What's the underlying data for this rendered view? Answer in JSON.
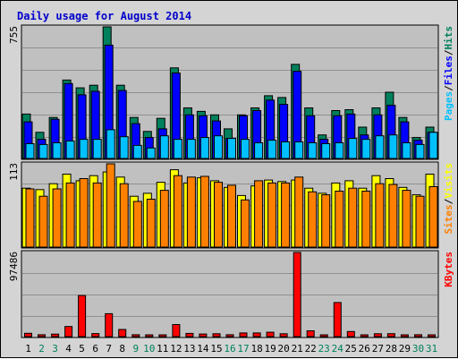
{
  "chart_data": {
    "type": "bar",
    "title": "Daily usage for August 2014",
    "colors": {
      "hits": "#00805c",
      "files": "#0000ff",
      "pages": "#00c0ff",
      "visits": "#ffff00",
      "sites": "#ff8000",
      "kbytes": "#ff0000",
      "weekday": "#000000",
      "weekend": "#00805c",
      "separator": "#000000"
    },
    "x": [
      "1",
      "2",
      "3",
      "4",
      "5",
      "6",
      "7",
      "8",
      "9",
      "10",
      "11",
      "12",
      "13",
      "14",
      "15",
      "16",
      "17",
      "18",
      "19",
      "20",
      "21",
      "22",
      "23",
      "24",
      "25",
      "26",
      "27",
      "28",
      "29",
      "30",
      "31"
    ],
    "weekend": [
      false,
      true,
      true,
      false,
      false,
      false,
      false,
      false,
      true,
      true,
      false,
      false,
      false,
      false,
      false,
      true,
      true,
      false,
      false,
      false,
      false,
      false,
      true,
      true,
      false,
      false,
      false,
      false,
      false,
      true,
      true
    ],
    "panels": [
      {
        "name": "hits-files-pages",
        "ymax_label": "755",
        "ymax": 755,
        "legend": [
          "Pages",
          "/",
          "Files",
          "/",
          "Hits"
        ],
        "legend_colors": [
          "#00c0ff",
          "#000000",
          "#0000ff",
          "#000000",
          "#00805c"
        ],
        "series": [
          {
            "name": "Hits",
            "values": [
              255,
              150,
              235,
              450,
              405,
              420,
              755,
              420,
              235,
              155,
              230,
              520,
              290,
              270,
              250,
              170,
              250,
              290,
              360,
              350,
              540,
              290,
              135,
              275,
              280,
              180,
              290,
              380,
              235,
              120,
              180
            ]
          },
          {
            "name": "Files",
            "values": [
              210,
              110,
              225,
              430,
              365,
              385,
              650,
              390,
              200,
              120,
              170,
              490,
              250,
              245,
              215,
              115,
              245,
              275,
              335,
              310,
              500,
              245,
              110,
              245,
              255,
              135,
              250,
              305,
              210,
              105,
              150
            ]
          },
          {
            "name": "Pages",
            "values": [
              85,
              80,
              90,
              100,
              110,
              110,
              165,
              125,
              75,
              60,
              130,
              110,
              110,
              120,
              130,
              115,
              110,
              90,
              105,
              95,
              95,
              90,
              85,
              90,
              115,
              110,
              130,
              135,
              90,
              80,
              150
            ]
          }
        ]
      },
      {
        "name": "visits-sites",
        "ymax_label": "113",
        "ymax": 113,
        "legend": [
          "Sites",
          "/",
          "Visits"
        ],
        "legend_colors": [
          "#ff8000",
          "#000000",
          "#ffff00"
        ],
        "series": [
          {
            "name": "Visits",
            "values": [
              80,
              78,
              86,
              99,
              90,
              97,
              102,
              95,
              69,
              73,
              88,
              105,
              87,
              94,
              90,
              81,
              70,
              83,
              91,
              89,
              91,
              80,
              73,
              87,
              90,
              80,
              97,
              93,
              81,
              71,
              99
            ]
          },
          {
            "name": "Sites",
            "values": [
              79,
              69,
              79,
              87,
              93,
              87,
              113,
              86,
              62,
              65,
              77,
              97,
              95,
              96,
              88,
              84,
              64,
              90,
              87,
              87,
              95,
              75,
              71,
              76,
              80,
              76,
              86,
              85,
              77,
              69,
              82
            ]
          }
        ]
      },
      {
        "name": "kbytes",
        "ymax_label": "97486",
        "ymax": 97486,
        "legend": [
          "KBytes"
        ],
        "legend_colors": [
          "#ff0000"
        ],
        "series": [
          {
            "name": "KBytes",
            "values": [
              3800,
              2200,
              2900,
              11700,
              47600,
              3500,
              26500,
              8300,
              2200,
              1100,
              2000,
              14000,
              3700,
              3000,
              3300,
              2200,
              4300,
              4300,
              5100,
              3300,
              97486,
              6700,
              1500,
              39500,
              5900,
              1300,
              3300,
              3400,
              1800,
              2200,
              1900
            ]
          }
        ]
      }
    ]
  }
}
